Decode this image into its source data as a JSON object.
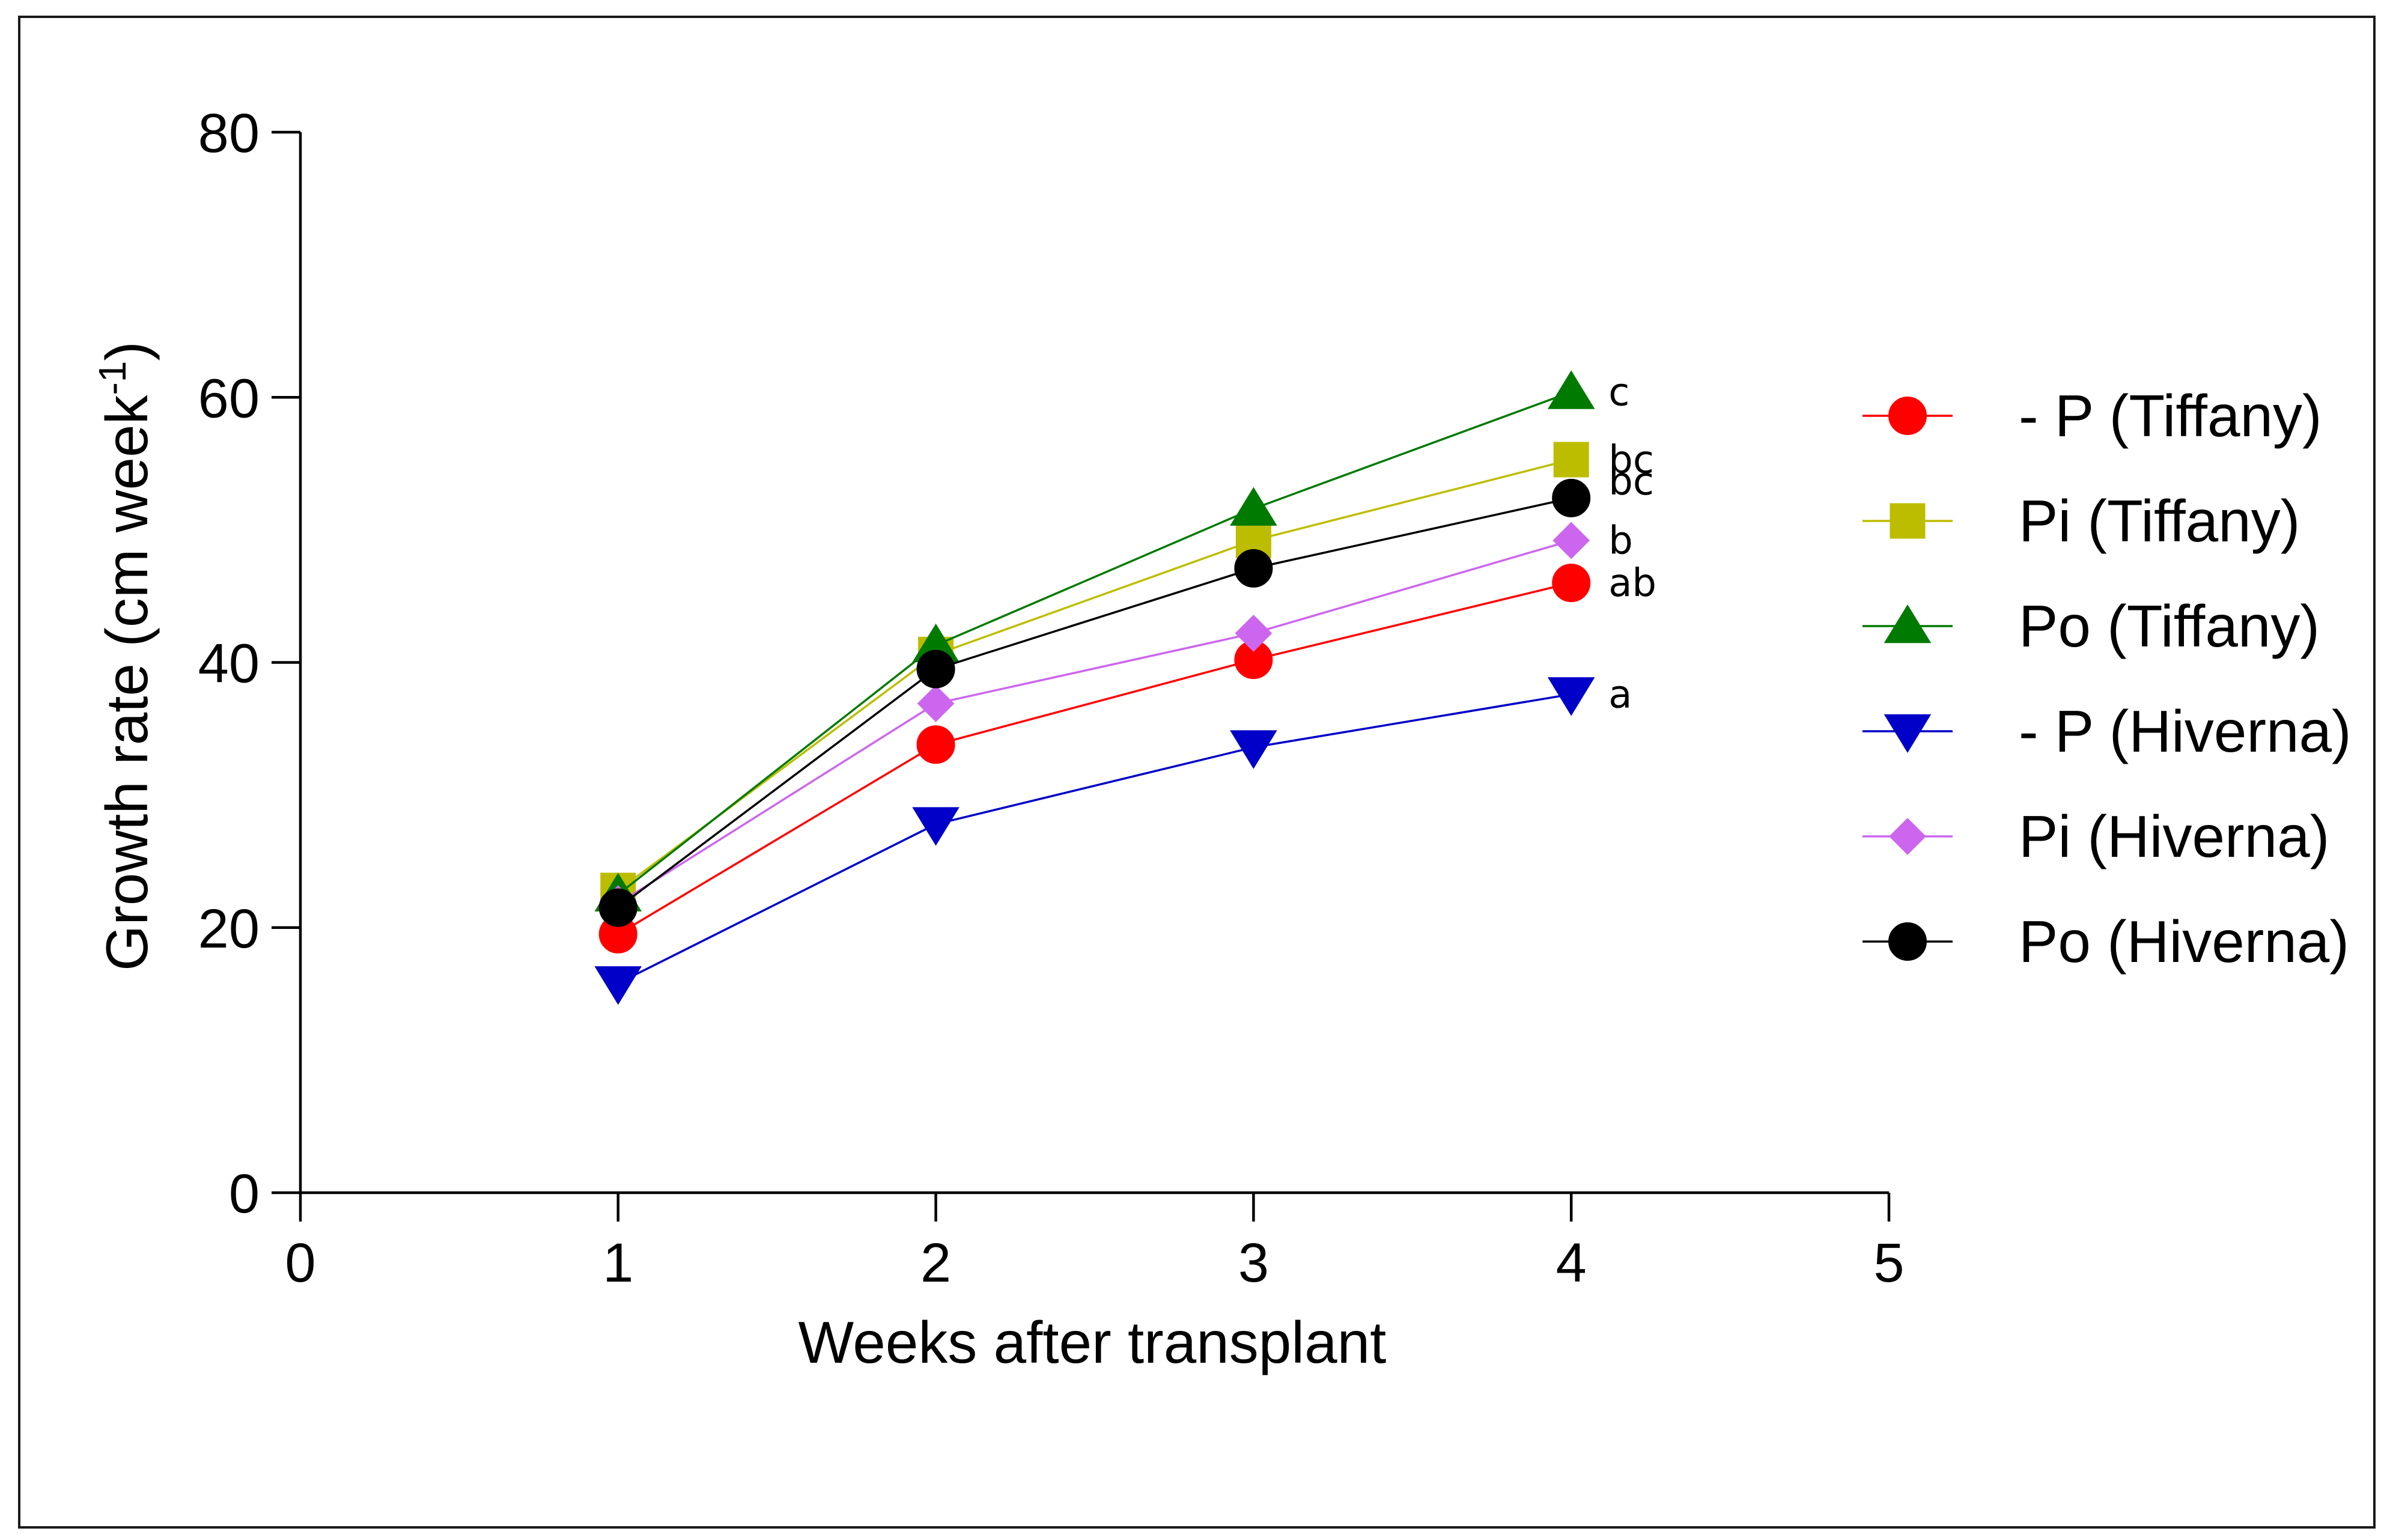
{
  "chart_data": {
    "type": "line",
    "title": "",
    "xlabel": "Weeks after transplant",
    "ylabel_main": "Growth rate (cm week",
    "ylabel_sup": "-1",
    "ylabel_close": ")",
    "xlim": [
      0,
      5
    ],
    "ylim": [
      0,
      80
    ],
    "xticks": [
      "0",
      "1",
      "2",
      "3",
      "4",
      "5"
    ],
    "yticks": [
      "0",
      "20",
      "40",
      "60",
      "80"
    ],
    "grid": false,
    "legend_position": "right",
    "x": [
      1,
      2,
      3,
      4
    ],
    "series": [
      {
        "name": "- P (Tiffany)",
        "color": "#ff0000",
        "marker": "circle",
        "values": [
          19.5,
          33.8,
          40.2,
          46.0
        ],
        "significance": "ab"
      },
      {
        "name": "Pi (Tiffany)",
        "color": "#bdbd00",
        "marker": "square",
        "values": [
          22.8,
          40.6,
          49.2,
          55.3
        ],
        "significance": "bc"
      },
      {
        "name": "Po (Tiffany)",
        "color": "#007a00",
        "marker": "triangle-up",
        "values": [
          22.5,
          41.3,
          51.6,
          60.4
        ],
        "significance": "c"
      },
      {
        "name": "- P (Hiverna)",
        "color": "#0000c8",
        "marker": "triangle-down",
        "values": [
          15.8,
          27.8,
          33.6,
          37.6
        ],
        "significance": "a"
      },
      {
        "name": "Pi (Hiverna)",
        "color": "#cc66ee",
        "marker": "diamond",
        "values": [
          21.8,
          36.9,
          42.2,
          49.2
        ],
        "significance": "b"
      },
      {
        "name": "Po (Hiverna)",
        "color": "#000000",
        "marker": "circle",
        "values": [
          21.5,
          39.5,
          47.1,
          52.4
        ],
        "significance": "bc"
      }
    ]
  }
}
